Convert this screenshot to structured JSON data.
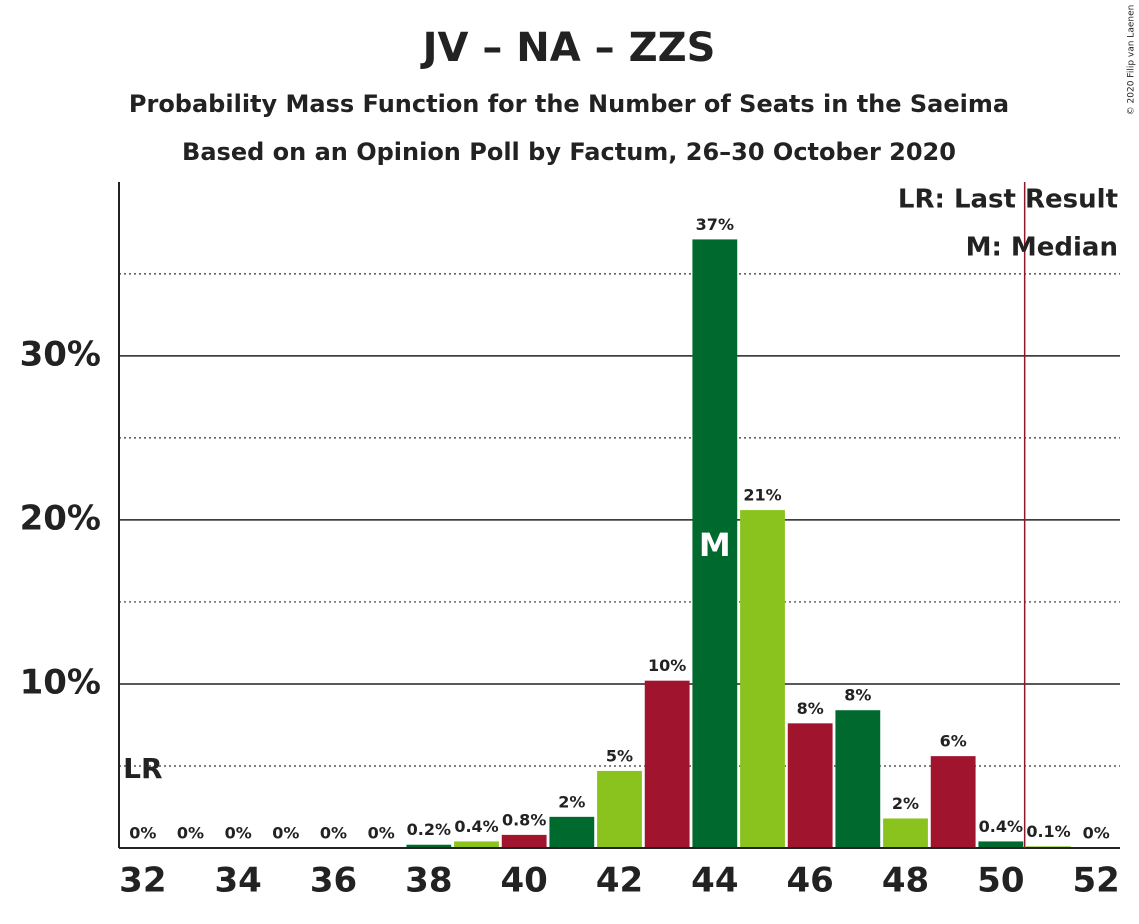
{
  "chart_data": {
    "type": "bar",
    "title": "JV – NA – ZZS",
    "subtitle": "Probability Mass Function for the Number of Seats in the Saeima",
    "subtitle2": "Based on an Opinion Poll by Factum, 26–30 October 2020",
    "credit": "© 2020 Filip van Laenen",
    "x": [
      32,
      33,
      34,
      35,
      36,
      37,
      38,
      39,
      40,
      41,
      42,
      43,
      44,
      45,
      46,
      47,
      48,
      49,
      50,
      51,
      52
    ],
    "values": [
      0,
      0,
      0,
      0,
      0,
      0,
      0.2,
      0.4,
      0.8,
      1.9,
      4.7,
      10.2,
      37.1,
      20.6,
      7.6,
      8.4,
      1.8,
      5.6,
      0.4,
      0.1,
      0
    ],
    "value_labels": [
      "0%",
      "0%",
      "0%",
      "0%",
      "0%",
      "0%",
      "0.2%",
      "0.4%",
      "0.8%",
      "2%",
      "5%",
      "10%",
      "37%",
      "21%",
      "8%",
      "8%",
      "2%",
      "6%",
      "0.4%",
      "0.1%",
      "0%"
    ],
    "colors": [
      "#006a2e",
      "#8ac31e",
      "#a0142e",
      "#006a2e",
      "#8ac31e",
      "#a0142e",
      "#006a2e",
      "#8ac31e",
      "#a0142e",
      "#006a2e",
      "#8ac31e",
      "#a0142e",
      "#006a2e",
      "#8ac31e",
      "#a0142e",
      "#006a2e",
      "#8ac31e",
      "#a0142e",
      "#006a2e",
      "#8ac31e",
      "#a0142e"
    ],
    "xlim": [
      31.5,
      52.5
    ],
    "xticks": [
      32,
      34,
      36,
      38,
      40,
      42,
      44,
      46,
      48,
      50,
      52
    ],
    "ylim": [
      0,
      40.6
    ],
    "yticks": [
      {
        "value": 10,
        "label": "10%"
      },
      {
        "value": 20,
        "label": "20%"
      },
      {
        "value": 30,
        "label": "30%"
      }
    ],
    "minor_yticks": [
      5,
      15,
      25,
      35
    ],
    "grid": true,
    "majority_line": 50.5,
    "majority_color": "#8b1a2b",
    "last_result": 32,
    "last_result_marker": "LR",
    "median": 44,
    "median_marker": "M",
    "legend": [
      "LR: Last Result",
      "M: Median"
    ],
    "legend_position": "upper right"
  }
}
